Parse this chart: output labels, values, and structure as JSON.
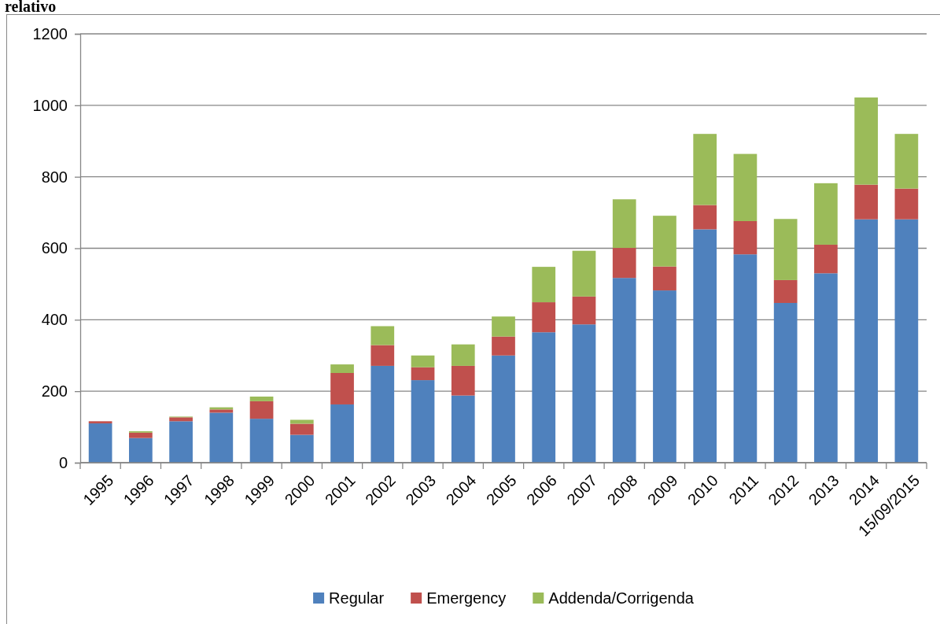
{
  "chart_data": {
    "type": "bar",
    "title": "relativo",
    "stacked": true,
    "categories": [
      "1995",
      "1996",
      "1997",
      "1998",
      "1999",
      "2000",
      "2001",
      "2002",
      "2003",
      "2004",
      "2005",
      "2006",
      "2007",
      "2008",
      "2009",
      "2010",
      "2011",
      "2012",
      "2013",
      "2014",
      "15/09/2015"
    ],
    "series": [
      {
        "name": "Regular",
        "color": "#4f81bd",
        "values": [
          110,
          69,
          116,
          140,
          123,
          78,
          163,
          271,
          231,
          188,
          300,
          365,
          387,
          517,
          482,
          653,
          583,
          447,
          530,
          681,
          681
        ]
      },
      {
        "name": "Emergency",
        "color": "#c0504d",
        "values": [
          6,
          15,
          11,
          9,
          49,
          31,
          88,
          58,
          36,
          83,
          53,
          84,
          78,
          84,
          67,
          68,
          93,
          64,
          80,
          97,
          86
        ]
      },
      {
        "name": "Addenda/Corrigenda",
        "color": "#9bbb59",
        "values": [
          0,
          4,
          2,
          6,
          13,
          11,
          24,
          53,
          33,
          60,
          56,
          99,
          128,
          136,
          142,
          199,
          188,
          171,
          172,
          244,
          153
        ]
      }
    ],
    "ylim": [
      0,
      1200
    ],
    "yticks": [
      0,
      200,
      400,
      600,
      800,
      1000,
      1200
    ],
    "grid": "y",
    "legend": "bottom"
  }
}
